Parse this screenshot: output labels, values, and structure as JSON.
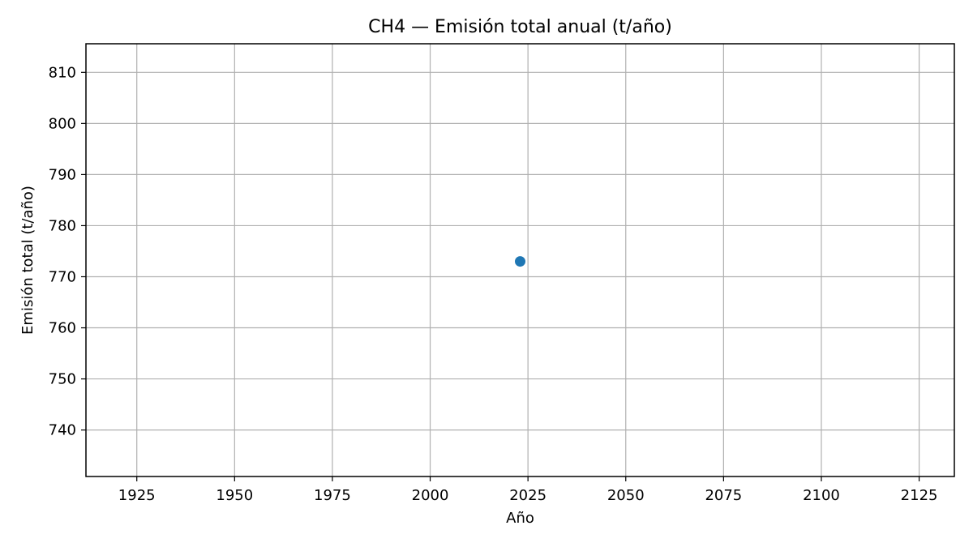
{
  "chart_data": {
    "type": "scatter",
    "title": "CH4 — Emisión total anual (t/año)",
    "xlabel": "Año",
    "ylabel": "Emisión total (t/año)",
    "xlim": [
      1912.0,
      2134.0
    ],
    "ylim": [
      730.9,
      815.6
    ],
    "xticks": [
      1925,
      1950,
      1975,
      2000,
      2025,
      2050,
      2075,
      2100,
      2125
    ],
    "yticks": [
      740,
      750,
      760,
      770,
      780,
      790,
      800,
      810
    ],
    "grid": true,
    "series": [
      {
        "color": "#1f77b4",
        "points": [
          {
            "x": 2023,
            "y": 773.0
          }
        ]
      }
    ]
  }
}
